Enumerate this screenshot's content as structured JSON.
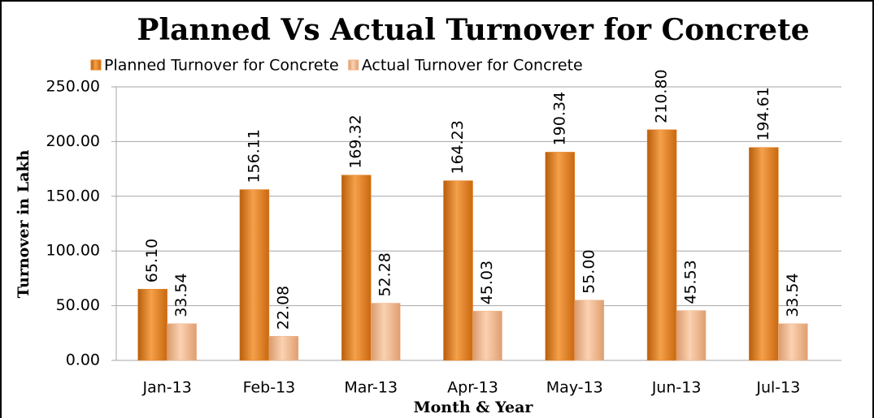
{
  "chart_data": {
    "type": "bar",
    "title": "Planned Vs Actual Turnover for Concrete",
    "x_label": "Month & Year",
    "y_label": "Turnover in Lakh",
    "categories": [
      "Jan-13",
      "Feb-13",
      "Mar-13",
      "Apr-13",
      "May-13",
      "Jun-13",
      "Jul-13"
    ],
    "series": [
      {
        "name": "Planned Turnover for Concrete",
        "color": "#e8801e",
        "values": [
          65.1,
          156.11,
          169.32,
          164.23,
          190.34,
          210.8,
          194.61
        ],
        "value_labels": [
          "65.10",
          "156.11",
          "169.32",
          "164.23",
          "190.34",
          "210.80",
          "194.61"
        ]
      },
      {
        "name": "Actual Turnover for Concrete",
        "color": "#f4b183",
        "values": [
          33.54,
          22.08,
          52.28,
          45.03,
          55.0,
          45.53,
          33.54
        ],
        "value_labels": [
          "33.54",
          "22.08",
          "52.28",
          "45.03",
          "55.00",
          "45.53",
          "33.54"
        ]
      }
    ],
    "ylim": [
      0,
      250
    ],
    "yticks": [
      {
        "value": 0,
        "label": "0.00"
      },
      {
        "value": 50,
        "label": "50.00"
      },
      {
        "value": 100,
        "label": "100.00"
      },
      {
        "value": 150,
        "label": "150.00"
      },
      {
        "value": 200,
        "label": "200.00"
      },
      {
        "value": 250,
        "label": "250.00"
      }
    ],
    "grid": true,
    "legend": "top"
  }
}
